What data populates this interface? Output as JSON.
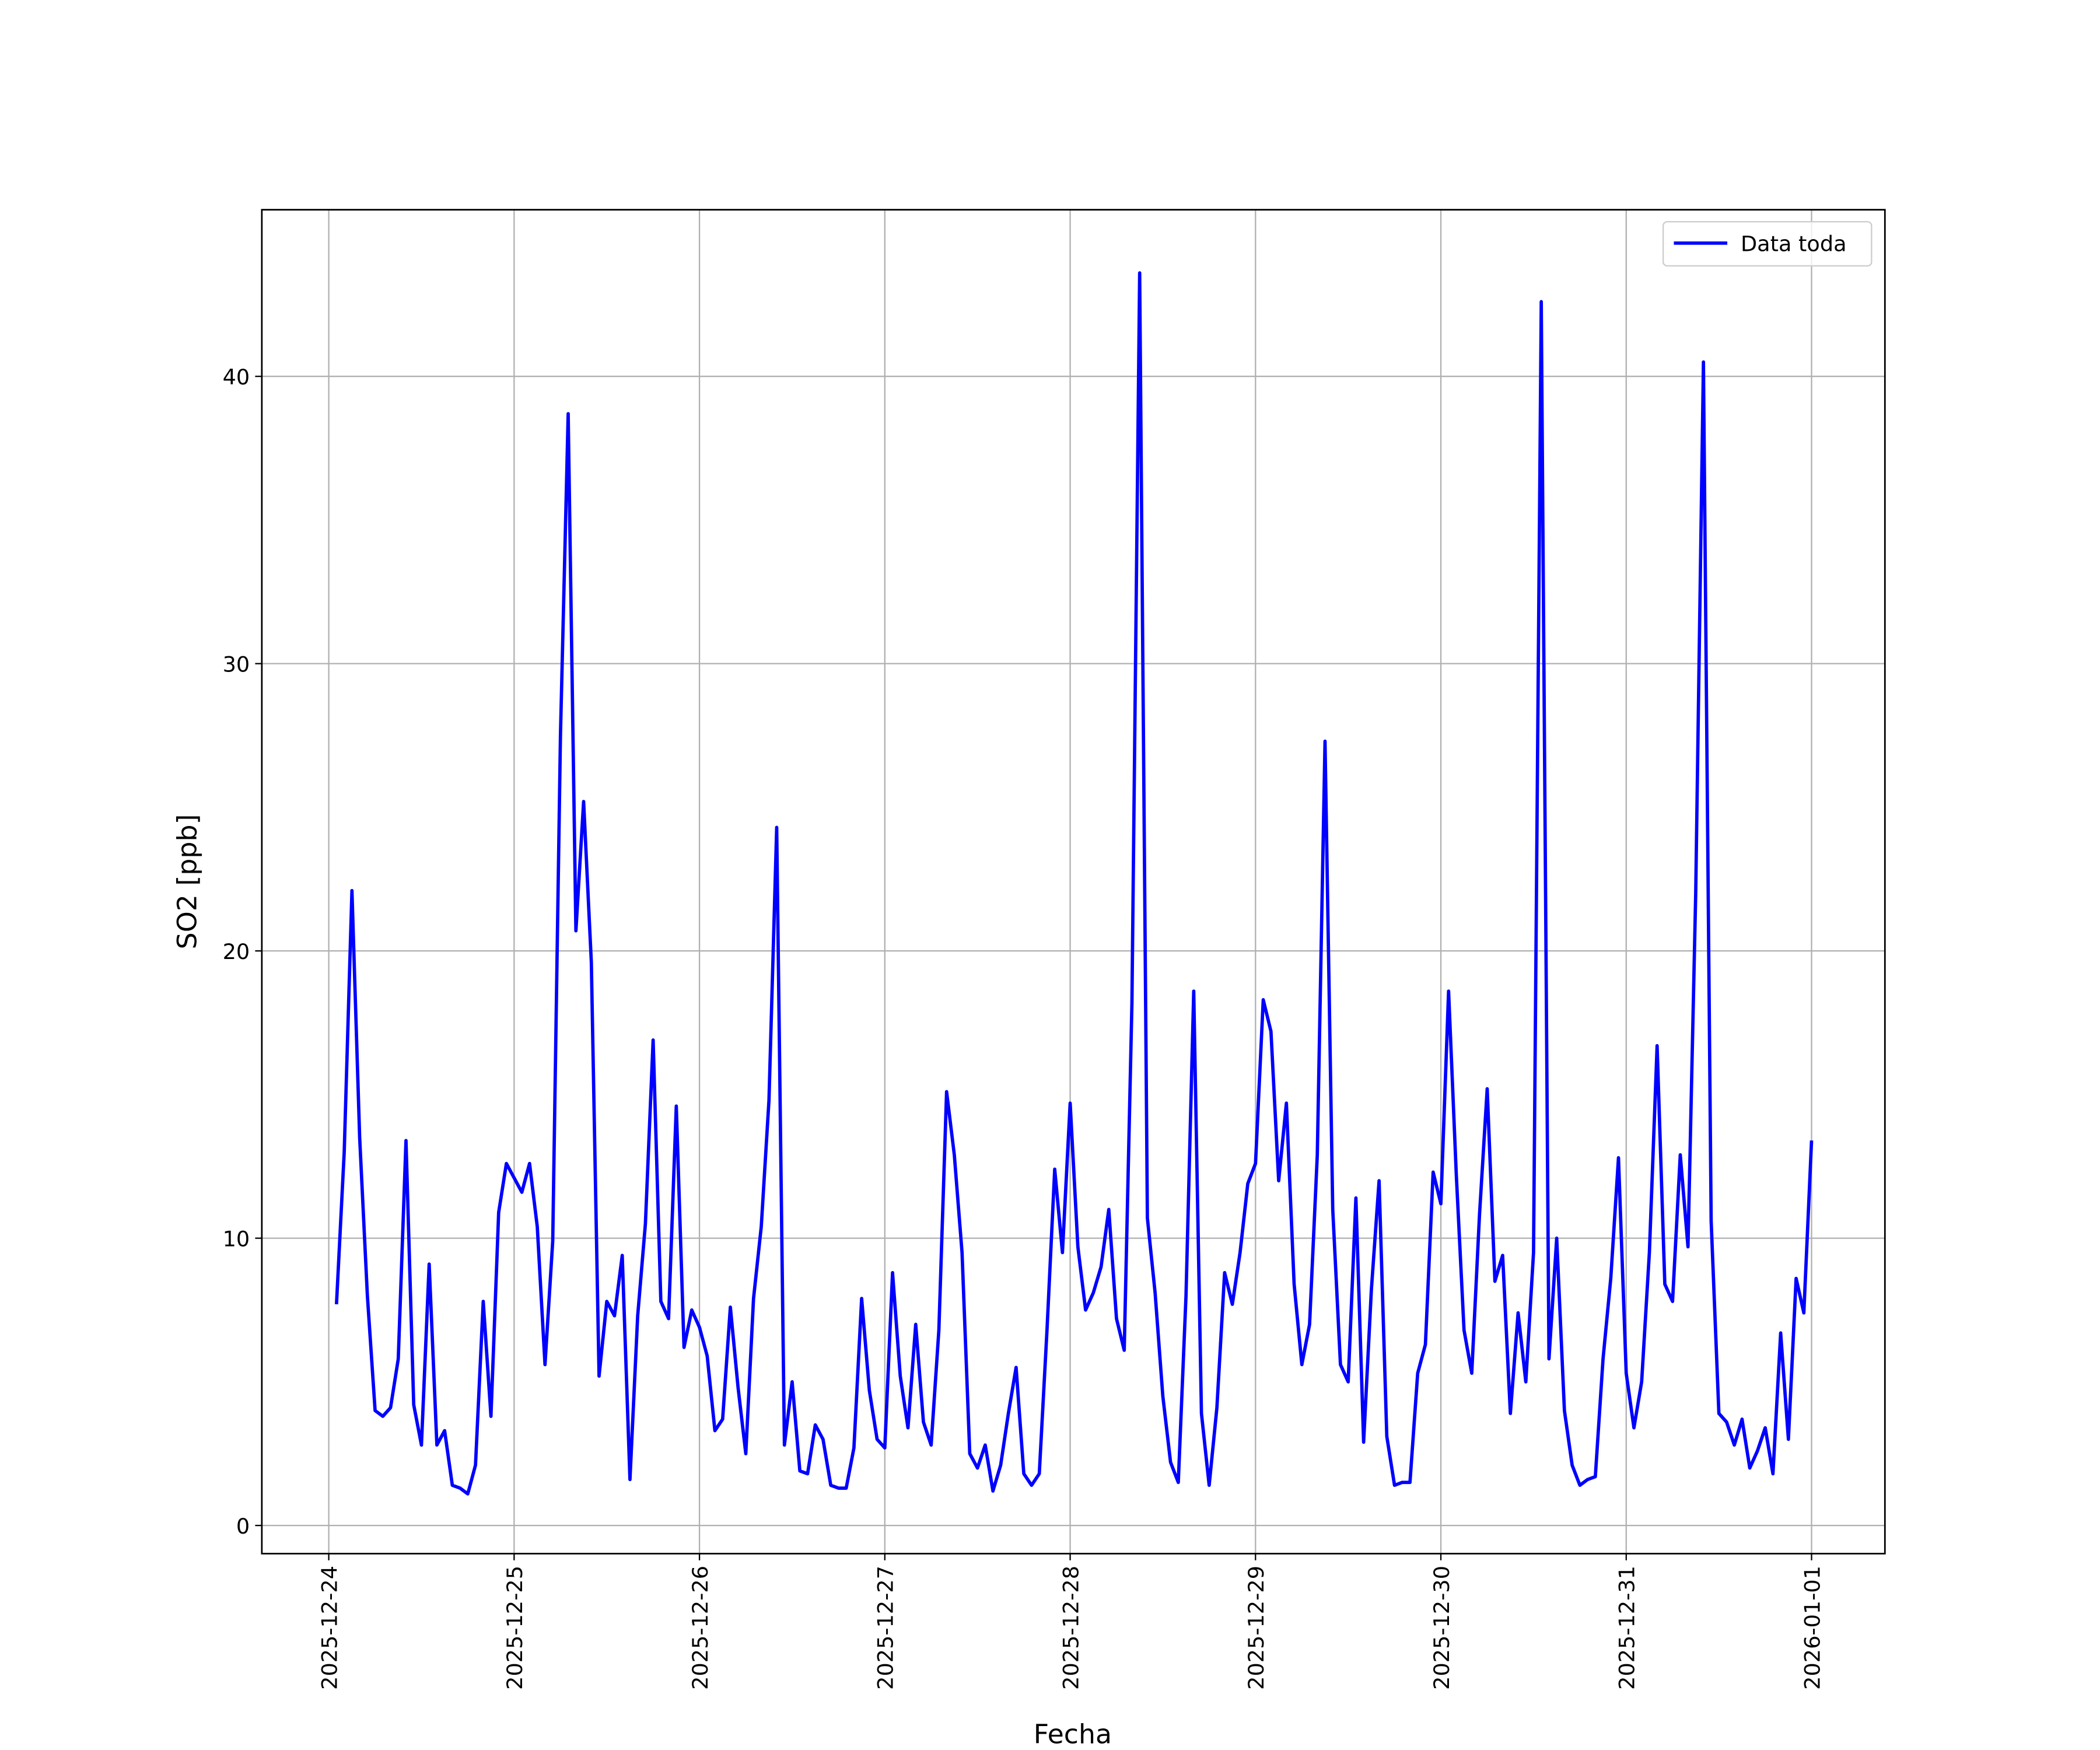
{
  "chart_data": {
    "type": "line",
    "xlabel": "Fecha",
    "ylabel": "SO2 [ppb]",
    "legend": "upper right",
    "grid": true,
    "xlim": [
      "2025-12-23 15:20",
      "2026-01-01 09:30"
    ],
    "xticks": [
      "2025-12-24",
      "2025-12-25",
      "2025-12-26",
      "2025-12-27",
      "2025-12-28",
      "2025-12-29",
      "2025-12-30",
      "2025-12-31",
      "2026-01-01"
    ],
    "ylim": [
      -0.98,
      45.8
    ],
    "yticks": [
      0,
      10,
      20,
      30,
      40
    ],
    "x": [
      "2025-12-24 01:00",
      "2025-12-24 02:00",
      "2025-12-24 03:00",
      "2025-12-24 04:00",
      "2025-12-24 05:00",
      "2025-12-24 06:00",
      "2025-12-24 07:00",
      "2025-12-24 08:00",
      "2025-12-24 09:00",
      "2025-12-24 10:00",
      "2025-12-24 11:00",
      "2025-12-24 12:00",
      "2025-12-24 13:00",
      "2025-12-24 14:00",
      "2025-12-24 15:00",
      "2025-12-24 16:00",
      "2025-12-24 17:00",
      "2025-12-24 18:00",
      "2025-12-24 19:00",
      "2025-12-24 20:00",
      "2025-12-24 21:00",
      "2025-12-24 22:00",
      "2025-12-24 23:00",
      "2025-12-25 00:00",
      "2025-12-25 01:00",
      "2025-12-25 02:00",
      "2025-12-25 03:00",
      "2025-12-25 04:00",
      "2025-12-25 05:00",
      "2025-12-25 06:00",
      "2025-12-25 07:00",
      "2025-12-25 08:00",
      "2025-12-25 09:00",
      "2025-12-25 10:00",
      "2025-12-25 11:00",
      "2025-12-25 12:00",
      "2025-12-25 13:00",
      "2025-12-25 14:00",
      "2025-12-25 15:00",
      "2025-12-25 16:00",
      "2025-12-25 17:00",
      "2025-12-25 18:00",
      "2025-12-25 19:00",
      "2025-12-25 20:00",
      "2025-12-25 21:00",
      "2025-12-25 22:00",
      "2025-12-25 23:00",
      "2025-12-26 00:00",
      "2025-12-26 01:00",
      "2025-12-26 02:00",
      "2025-12-26 03:00",
      "2025-12-26 04:00",
      "2025-12-26 05:00",
      "2025-12-26 06:00",
      "2025-12-26 07:00",
      "2025-12-26 08:00",
      "2025-12-26 09:00",
      "2025-12-26 10:00",
      "2025-12-26 11:00",
      "2025-12-26 12:00",
      "2025-12-26 13:00",
      "2025-12-26 14:00",
      "2025-12-26 15:00",
      "2025-12-26 16:00",
      "2025-12-26 17:00",
      "2025-12-26 18:00",
      "2025-12-26 19:00",
      "2025-12-26 20:00",
      "2025-12-26 21:00",
      "2025-12-26 22:00",
      "2025-12-26 23:00",
      "2025-12-27 00:00",
      "2025-12-27 01:00",
      "2025-12-27 02:00",
      "2025-12-27 03:00",
      "2025-12-27 04:00",
      "2025-12-27 05:00",
      "2025-12-27 06:00",
      "2025-12-27 07:00",
      "2025-12-27 08:00",
      "2025-12-27 09:00",
      "2025-12-27 10:00",
      "2025-12-27 11:00",
      "2025-12-27 12:00",
      "2025-12-27 13:00",
      "2025-12-27 14:00",
      "2025-12-27 15:00",
      "2025-12-27 16:00",
      "2025-12-27 17:00",
      "2025-12-27 18:00",
      "2025-12-27 19:00",
      "2025-12-27 20:00",
      "2025-12-27 21:00",
      "2025-12-27 22:00",
      "2025-12-27 23:00",
      "2025-12-28 00:00",
      "2025-12-28 01:00",
      "2025-12-28 02:00",
      "2025-12-28 03:00",
      "2025-12-28 04:00",
      "2025-12-28 05:00",
      "2025-12-28 06:00",
      "2025-12-28 07:00",
      "2025-12-28 08:00",
      "2025-12-28 09:00",
      "2025-12-28 10:00",
      "2025-12-28 11:00",
      "2025-12-28 12:00",
      "2025-12-28 13:00",
      "2025-12-28 14:00",
      "2025-12-28 15:00",
      "2025-12-28 16:00",
      "2025-12-28 17:00",
      "2025-12-28 18:00",
      "2025-12-28 19:00",
      "2025-12-28 20:00",
      "2025-12-28 21:00",
      "2025-12-28 22:00",
      "2025-12-28 23:00",
      "2025-12-29 00:00",
      "2025-12-29 01:00",
      "2025-12-29 02:00",
      "2025-12-29 03:00",
      "2025-12-29 04:00",
      "2025-12-29 05:00",
      "2025-12-29 06:00",
      "2025-12-29 07:00",
      "2025-12-29 08:00",
      "2025-12-29 09:00",
      "2025-12-29 10:00",
      "2025-12-29 11:00",
      "2025-12-29 12:00",
      "2025-12-29 13:00",
      "2025-12-29 14:00",
      "2025-12-29 15:00",
      "2025-12-29 16:00",
      "2025-12-29 17:00",
      "2025-12-29 18:00",
      "2025-12-29 19:00",
      "2025-12-29 20:00",
      "2025-12-29 21:00",
      "2025-12-29 22:00",
      "2025-12-29 23:00",
      "2025-12-30 00:00",
      "2025-12-30 01:00",
      "2025-12-30 02:00",
      "2025-12-30 03:00",
      "2025-12-30 04:00",
      "2025-12-30 05:00",
      "2025-12-30 06:00",
      "2025-12-30 07:00",
      "2025-12-30 08:00",
      "2025-12-30 09:00",
      "2025-12-30 10:00",
      "2025-12-30 11:00",
      "2025-12-30 12:00",
      "2025-12-30 13:00",
      "2025-12-30 14:00",
      "2025-12-30 15:00",
      "2025-12-30 16:00",
      "2025-12-30 17:00",
      "2025-12-30 18:00",
      "2025-12-30 19:00",
      "2025-12-30 20:00",
      "2025-12-30 21:00",
      "2025-12-30 22:00",
      "2025-12-30 23:00",
      "2025-12-31 00:00",
      "2025-12-31 01:00",
      "2025-12-31 02:00",
      "2025-12-31 03:00",
      "2025-12-31 04:00",
      "2025-12-31 05:00",
      "2025-12-31 06:00",
      "2025-12-31 07:00",
      "2025-12-31 08:00",
      "2025-12-31 09:00",
      "2025-12-31 10:00",
      "2025-12-31 11:00",
      "2025-12-31 12:00",
      "2025-12-31 13:00",
      "2025-12-31 14:00",
      "2025-12-31 15:00",
      "2025-12-31 16:00",
      "2025-12-31 17:00",
      "2025-12-31 18:00",
      "2025-12-31 19:00",
      "2025-12-31 20:00",
      "2025-12-31 21:00",
      "2025-12-31 22:00",
      "2025-12-31 23:00",
      "2026-01-01 00:00"
    ],
    "series": [
      {
        "name": "Data toda",
        "color": "#0000ff",
        "values": [
          7.7,
          13,
          22.1,
          13.5,
          8,
          4.0,
          3.8,
          4.1,
          5.8,
          13.4,
          4.2,
          2.8,
          9.1,
          2.8,
          3.3,
          1.4,
          1.3,
          1.1,
          2.1,
          7.8,
          3.8,
          10.9,
          12.6,
          12.1,
          11.6,
          12.6,
          10.4,
          5.6,
          9.9,
          27.5,
          38.7,
          20.7,
          25.2,
          19.6,
          5.2,
          7.8,
          7.3,
          9.4,
          1.6,
          7.3,
          10.5,
          16.9,
          7.8,
          7.2,
          14.6,
          6.2,
          7.5,
          6.9,
          5.9,
          3.3,
          3.7,
          7.6,
          4.8,
          2.5,
          7.9,
          10.4,
          14.8,
          24.3,
          2.8,
          5.0,
          1.9,
          1.8,
          3.5,
          3.0,
          1.4,
          1.3,
          1.3,
          2.7,
          7.9,
          4.7,
          3.0,
          2.7,
          8.8,
          5.2,
          3.4,
          7.0,
          3.6,
          2.8,
          6.8,
          15.1,
          12.9,
          9.5,
          2.5,
          2.0,
          2.8,
          1.2,
          2.1,
          3.9,
          5.5,
          1.8,
          1.4,
          1.8,
          6.8,
          12.4,
          9.5,
          14.7,
          9.7,
          7.5,
          8.1,
          9.0,
          11.0,
          7.2,
          6.1,
          18.2,
          43.6,
          10.7,
          8.1,
          4.5,
          2.2,
          1.5,
          8.0,
          18.6,
          3.9,
          1.4,
          4.1,
          8.8,
          7.7,
          9.5,
          11.9,
          12.6,
          18.3,
          17.2,
          12.0,
          14.7,
          8.4,
          5.6,
          7.0,
          12.9,
          27.3,
          11.0,
          5.6,
          5.0,
          11.4,
          2.9,
          8.2,
          12.0,
          3.1,
          1.4,
          1.5,
          1.5,
          5.3,
          6.3,
          12.3,
          11.2,
          18.6,
          12.2,
          6.8,
          5.3,
          10.8,
          15.2,
          8.5,
          9.4,
          3.9,
          7.4,
          5.0,
          9.5,
          42.6,
          5.8,
          10.0,
          4.0,
          2.1,
          1.4,
          1.6,
          1.7,
          5.8,
          8.6,
          12.8,
          5.3,
          3.4,
          5.0,
          9.5,
          16.7,
          8.4,
          7.8,
          12.9,
          9.7,
          22.0,
          40.5,
          10.6,
          3.9,
          3.6,
          2.8,
          3.7,
          2.0,
          2.6,
          3.4,
          1.8,
          6.7,
          3.0,
          8.6,
          7.4,
          13.4
        ]
      }
    ]
  }
}
